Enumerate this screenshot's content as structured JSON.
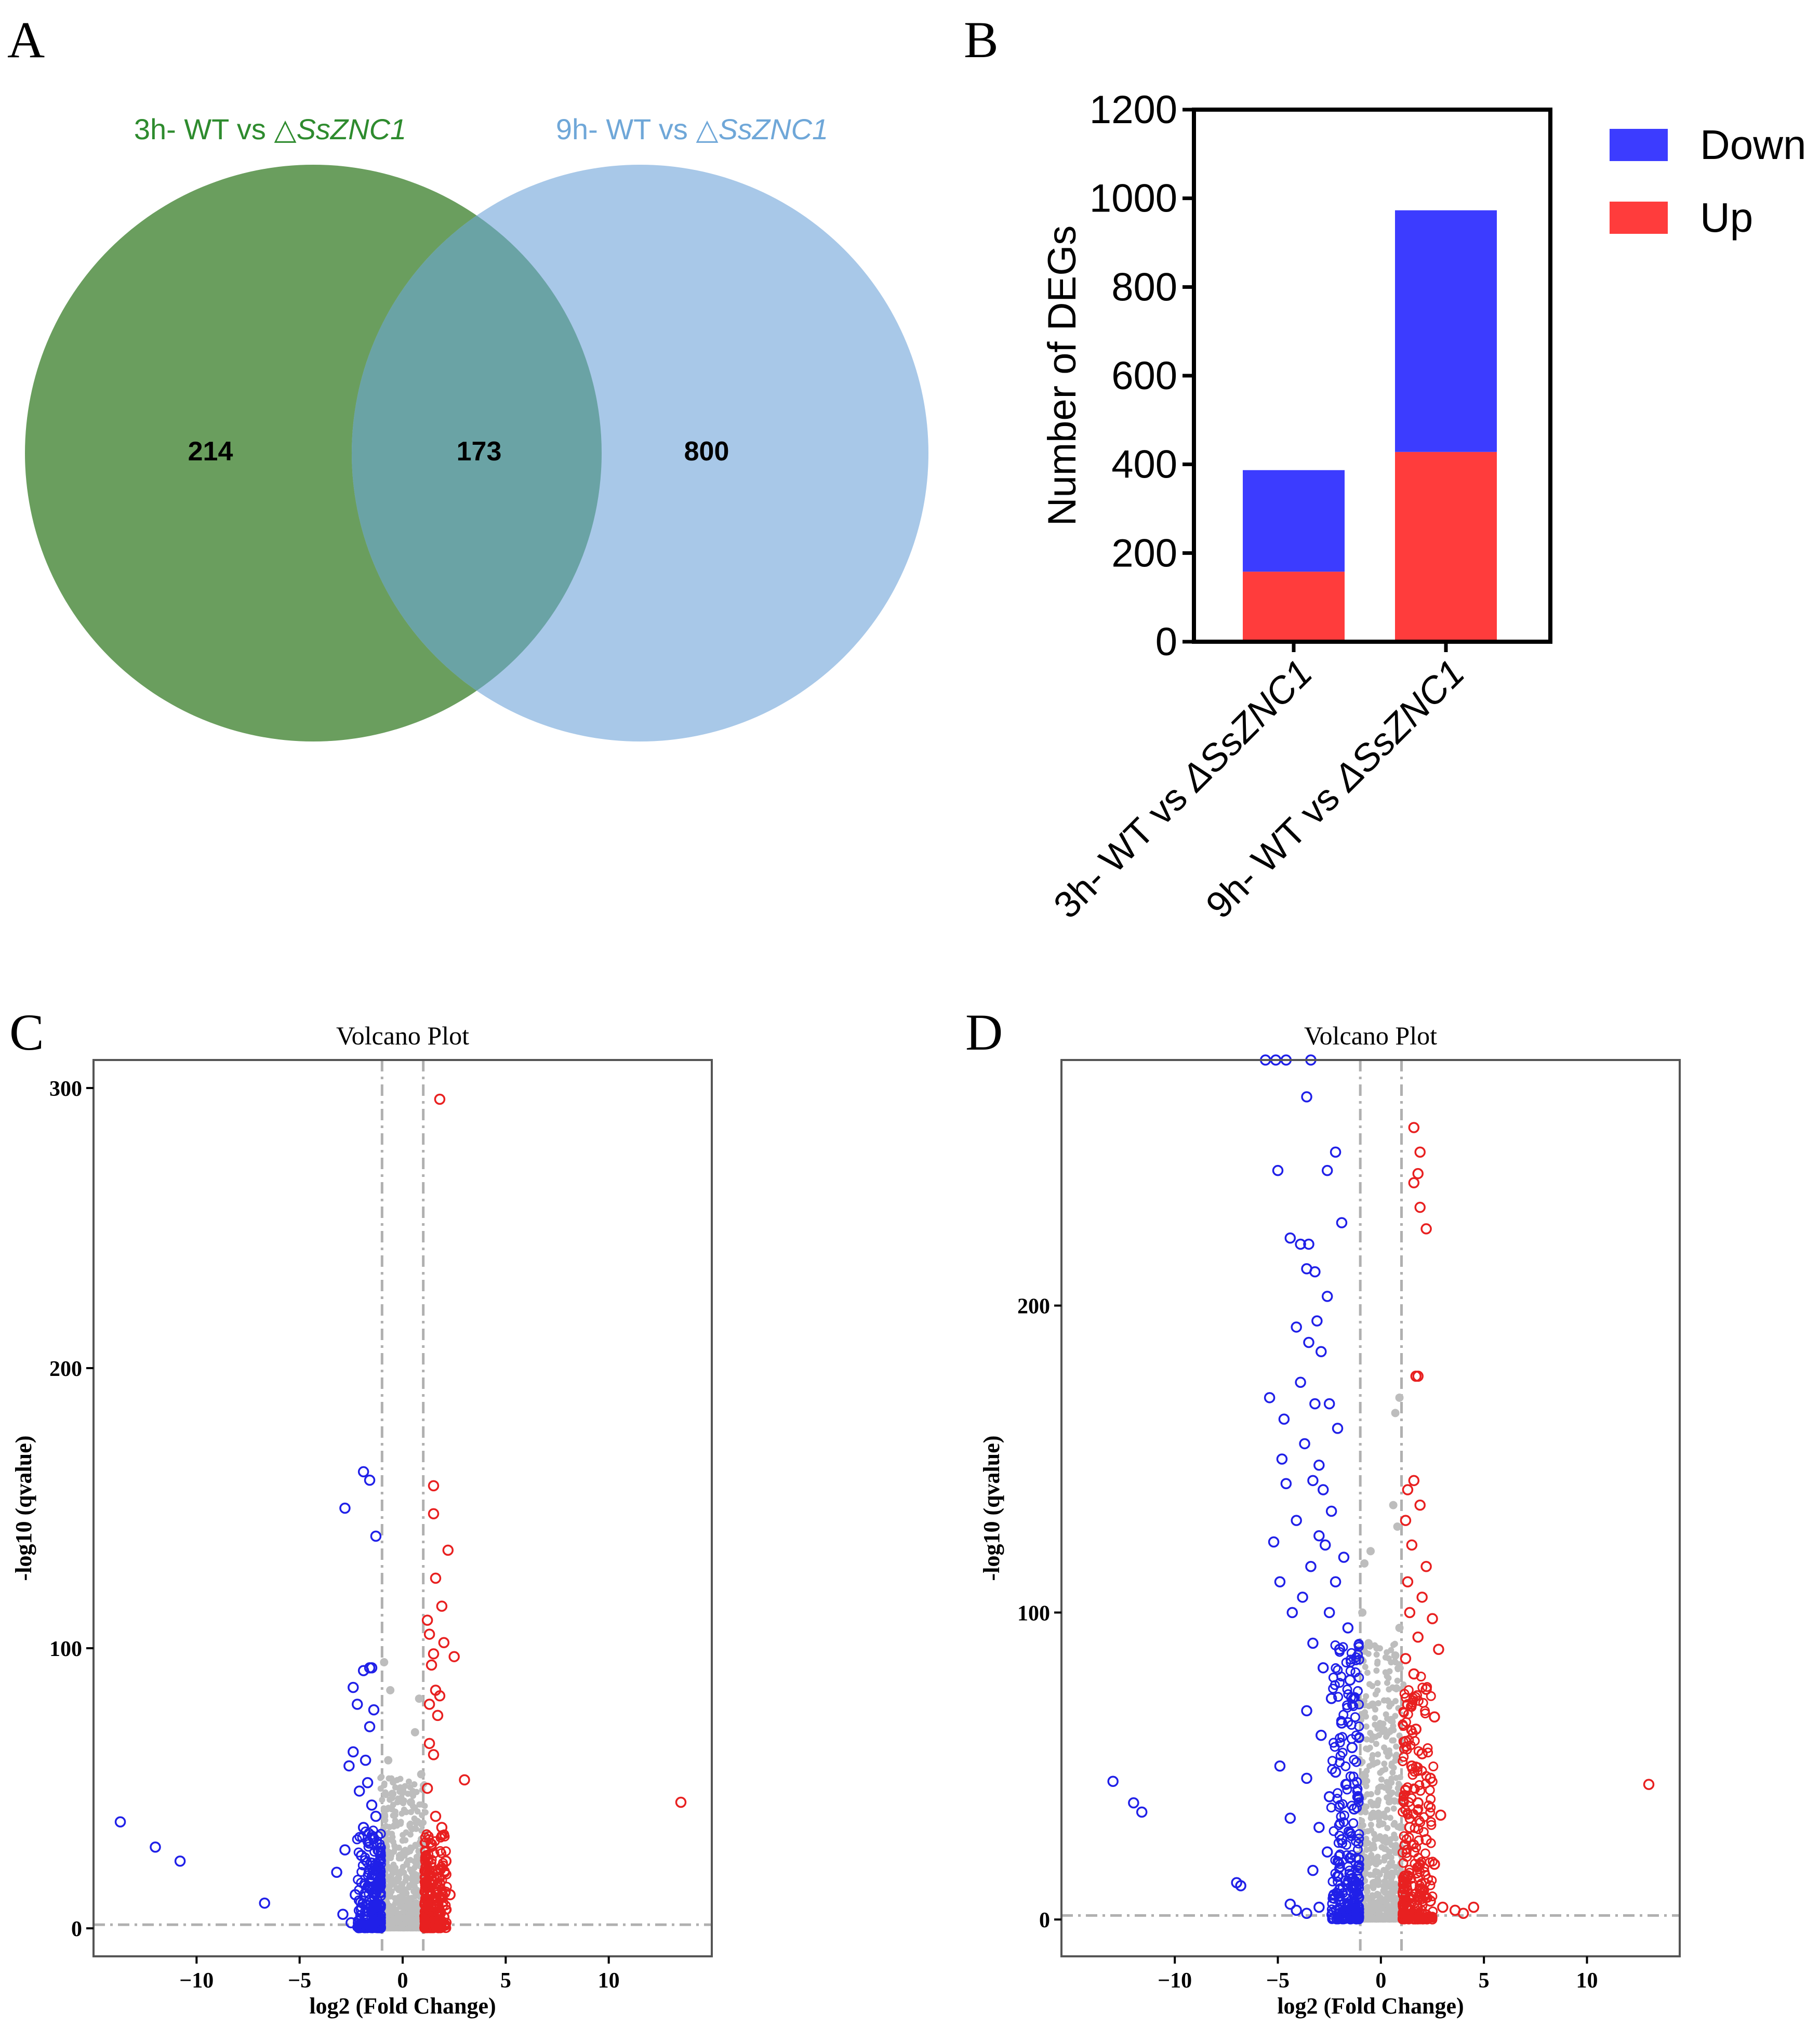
{
  "panel_labels": [
    "A",
    "B",
    "C",
    "D"
  ],
  "venn": {
    "set1_label_prefix": "3h- WT vs △",
    "set1_label_gene": "SsZNC1",
    "set2_label_prefix": "9h- WT vs △",
    "set2_label_gene": "SsZNC1",
    "only_set1": "214",
    "overlap": "173",
    "only_set2": "800",
    "colors": {
      "set1": "#6a9e5e",
      "set2": "#a8c8e8",
      "overlap": "#6aa3a5",
      "label1": "#2e8b2e",
      "label2": "#6fa7d8"
    }
  },
  "chart_data": [
    {
      "type": "bar",
      "stacked": true,
      "panel": "B",
      "title": "",
      "categories": [
        "3h- WT vs ΔSsZNC1",
        "9h- WT vs ΔSsZNC1"
      ],
      "category_parts": [
        {
          "prefix": "3h- WT vs ",
          "gene": "ΔSsZNC1"
        },
        {
          "prefix": "9h- WT vs ",
          "gene": "ΔSsZNC1"
        }
      ],
      "series": [
        {
          "name": "Up",
          "values": [
            158,
            428
          ],
          "color": "#ff3c3c"
        },
        {
          "name": "Down",
          "values": [
            229,
            545
          ],
          "color": "#3c3cff"
        }
      ],
      "legend_order": [
        "Down",
        "Up"
      ],
      "xlabel": "",
      "ylabel": "Number of DEGs",
      "ylim": [
        0,
        1200
      ],
      "yticks": [
        0,
        200,
        400,
        600,
        800,
        1000,
        1200
      ],
      "legend_position": "right"
    },
    {
      "type": "scatter",
      "panel": "C",
      "title": "Volcano Plot",
      "xlabel": "log2 (Fold Change)",
      "ylabel": "-log10 (qvalue)",
      "xlim": [
        -15,
        15
      ],
      "ylim": [
        -10,
        310
      ],
      "xticks": [
        -10,
        -5,
        0,
        5,
        10
      ],
      "yticks": [
        0,
        100,
        200,
        300
      ],
      "threshold_x": [
        -1,
        1
      ],
      "threshold_y": 1.3,
      "down_points": [
        [
          -13.7,
          38
        ],
        [
          -12,
          29
        ],
        [
          -10.8,
          24
        ],
        [
          -6.7,
          9
        ],
        [
          -2.8,
          150
        ],
        [
          -1.9,
          163
        ],
        [
          -1.6,
          160
        ],
        [
          -1.3,
          140
        ],
        [
          -1.9,
          92
        ],
        [
          -1.6,
          93
        ],
        [
          -1.5,
          93
        ],
        [
          -2.4,
          86
        ],
        [
          -2.2,
          80
        ],
        [
          -1.4,
          78
        ],
        [
          -1.6,
          72
        ],
        [
          -2.4,
          63
        ],
        [
          -1.8,
          60
        ],
        [
          -2.6,
          58
        ],
        [
          -1.7,
          52
        ],
        [
          -2.1,
          49
        ],
        [
          -1.5,
          44
        ],
        [
          -1.3,
          40
        ],
        [
          -1.9,
          36
        ],
        [
          -1.4,
          32
        ],
        [
          -2.8,
          28
        ],
        [
          -2.0,
          26
        ],
        [
          -1.2,
          22
        ],
        [
          -1.5,
          18
        ],
        [
          -3.2,
          20
        ],
        [
          -2.3,
          12
        ],
        [
          -1.6,
          10
        ],
        [
          -2.9,
          5
        ],
        [
          -1.8,
          4
        ],
        [
          -1.3,
          3
        ],
        [
          -2.5,
          2
        ]
      ],
      "up_points": [
        [
          1.8,
          296
        ],
        [
          1.5,
          158
        ],
        [
          1.5,
          148
        ],
        [
          2.2,
          135
        ],
        [
          1.6,
          125
        ],
        [
          1.9,
          115
        ],
        [
          1.2,
          110
        ],
        [
          1.3,
          105
        ],
        [
          2.0,
          102
        ],
        [
          1.5,
          98
        ],
        [
          2.5,
          97
        ],
        [
          1.4,
          94
        ],
        [
          1.6,
          85
        ],
        [
          1.8,
          83
        ],
        [
          1.3,
          80
        ],
        [
          1.7,
          76
        ],
        [
          1.3,
          66
        ],
        [
          1.5,
          62
        ],
        [
          3.0,
          53
        ],
        [
          1.2,
          50
        ],
        [
          1.6,
          40
        ],
        [
          1.9,
          36
        ],
        [
          1.4,
          30
        ],
        [
          2.1,
          24
        ],
        [
          1.3,
          20
        ],
        [
          1.8,
          16
        ],
        [
          2.3,
          12
        ],
        [
          1.5,
          8
        ],
        [
          2.0,
          4
        ],
        [
          13.5,
          45
        ]
      ],
      "ns_points": [
        [
          -0.9,
          95
        ],
        [
          -0.6,
          85
        ],
        [
          0.8,
          82
        ],
        [
          0.6,
          70
        ],
        [
          -0.7,
          60
        ],
        [
          0.9,
          55
        ],
        [
          -0.5,
          48
        ],
        [
          0.4,
          45
        ],
        [
          -0.9,
          40
        ],
        [
          0.7,
          38
        ]
      ]
    },
    {
      "type": "scatter",
      "panel": "D",
      "title": "Volcano Plot",
      "xlabel": "log2 (Fold Change)",
      "ylabel": "-log10 (qvalue)",
      "xlim": [
        -15.5,
        14.5
      ],
      "ylim": [
        -12,
        280
      ],
      "xticks": [
        -10,
        -5,
        0,
        5,
        10
      ],
      "yticks": [
        0,
        100,
        200
      ],
      "threshold_x": [
        -1,
        1
      ],
      "threshold_y": 1.3,
      "down_points": [
        [
          -13,
          45
        ],
        [
          -12,
          38
        ],
        [
          -11.6,
          35
        ],
        [
          -7,
          12
        ],
        [
          -6.8,
          11
        ],
        [
          -5.4,
          170
        ],
        [
          -4.6,
          142
        ],
        [
          -4.8,
          150
        ],
        [
          -5.2,
          123
        ],
        [
          -4.9,
          110
        ],
        [
          -4.3,
          100
        ],
        [
          -5.6,
          280
        ],
        [
          -5.1,
          280
        ],
        [
          -4.6,
          280
        ],
        [
          -3.4,
          280
        ],
        [
          -3.6,
          268
        ],
        [
          -5.0,
          244
        ],
        [
          -2.2,
          250
        ],
        [
          -2.6,
          244
        ],
        [
          -1.9,
          227
        ],
        [
          -3.9,
          220
        ],
        [
          -3.5,
          220
        ],
        [
          -4.4,
          222
        ],
        [
          -3.6,
          212
        ],
        [
          -3.2,
          211
        ],
        [
          -2.6,
          203
        ],
        [
          -3.1,
          195
        ],
        [
          -4.1,
          193
        ],
        [
          -3.5,
          188
        ],
        [
          -2.9,
          185
        ],
        [
          -3.9,
          175
        ],
        [
          -3.2,
          168
        ],
        [
          -2.5,
          168
        ],
        [
          -4.7,
          163
        ],
        [
          -2.1,
          160
        ],
        [
          -3.7,
          155
        ],
        [
          -3.0,
          148
        ],
        [
          -3.3,
          143
        ],
        [
          -2.8,
          140
        ],
        [
          -4.1,
          130
        ],
        [
          -2.4,
          133
        ],
        [
          -3.0,
          125
        ],
        [
          -2.7,
          122
        ],
        [
          -1.8,
          118
        ],
        [
          -3.4,
          115
        ],
        [
          -2.2,
          110
        ],
        [
          -3.8,
          105
        ],
        [
          -2.5,
          100
        ],
        [
          -1.6,
          95
        ],
        [
          -3.3,
          90
        ],
        [
          -2.0,
          88
        ],
        [
          -2.8,
          82
        ],
        [
          -1.5,
          78
        ],
        [
          -2.4,
          72
        ],
        [
          -3.6,
          68
        ],
        [
          -1.9,
          64
        ],
        [
          -2.9,
          60
        ],
        [
          -1.4,
          56
        ],
        [
          -4.9,
          50
        ],
        [
          -2.2,
          48
        ],
        [
          -3.6,
          46
        ],
        [
          -1.7,
          44
        ],
        [
          -2.5,
          40
        ],
        [
          -1.3,
          36
        ],
        [
          -4.4,
          33
        ],
        [
          -3.0,
          30
        ],
        [
          -1.9,
          26
        ],
        [
          -2.6,
          22
        ],
        [
          -1.5,
          20
        ],
        [
          -3.3,
          16
        ],
        [
          -2.1,
          14
        ],
        [
          -1.2,
          10
        ],
        [
          -4.4,
          5
        ],
        [
          -3.0,
          4
        ],
        [
          -2.0,
          3
        ],
        [
          -1.4,
          2
        ],
        [
          -4.1,
          3
        ],
        [
          -3.6,
          2
        ]
      ],
      "up_points": [
        [
          1.6,
          258
        ],
        [
          1.9,
          250
        ],
        [
          1.8,
          243
        ],
        [
          1.6,
          240
        ],
        [
          1.9,
          232
        ],
        [
          2.2,
          225
        ],
        [
          1.8,
          177
        ],
        [
          1.7,
          177
        ],
        [
          1.6,
          143
        ],
        [
          1.3,
          140
        ],
        [
          1.9,
          135
        ],
        [
          1.2,
          130
        ],
        [
          1.5,
          122
        ],
        [
          2.2,
          115
        ],
        [
          1.3,
          110
        ],
        [
          2.0,
          105
        ],
        [
          2.5,
          98
        ],
        [
          1.4,
          100
        ],
        [
          1.8,
          92
        ],
        [
          2.8,
          88
        ],
        [
          1.2,
          85
        ],
        [
          1.6,
          80
        ],
        [
          2.2,
          75
        ],
        [
          1.3,
          70
        ],
        [
          2.6,
          66
        ],
        [
          1.7,
          62
        ],
        [
          1.2,
          58
        ],
        [
          2.0,
          54
        ],
        [
          1.5,
          50
        ],
        [
          2.4,
          46
        ],
        [
          1.2,
          42
        ],
        [
          1.8,
          38
        ],
        [
          2.9,
          34
        ],
        [
          1.4,
          30
        ],
        [
          2.2,
          26
        ],
        [
          1.6,
          22
        ],
        [
          2.6,
          18
        ],
        [
          1.3,
          14
        ],
        [
          1.9,
          10
        ],
        [
          2.4,
          6
        ],
        [
          3.0,
          4
        ],
        [
          3.6,
          3
        ],
        [
          4.0,
          2
        ],
        [
          4.5,
          4
        ],
        [
          13,
          44
        ]
      ],
      "ns_points": [
        [
          0.9,
          170
        ],
        [
          0.7,
          165
        ],
        [
          -0.5,
          120
        ],
        [
          -0.8,
          116
        ],
        [
          0.6,
          135
        ],
        [
          0.8,
          128
        ],
        [
          -0.9,
          100
        ],
        [
          0.9,
          95
        ],
        [
          -0.6,
          90
        ],
        [
          0.7,
          86
        ],
        [
          -0.4,
          70
        ],
        [
          0.5,
          65
        ]
      ]
    }
  ]
}
